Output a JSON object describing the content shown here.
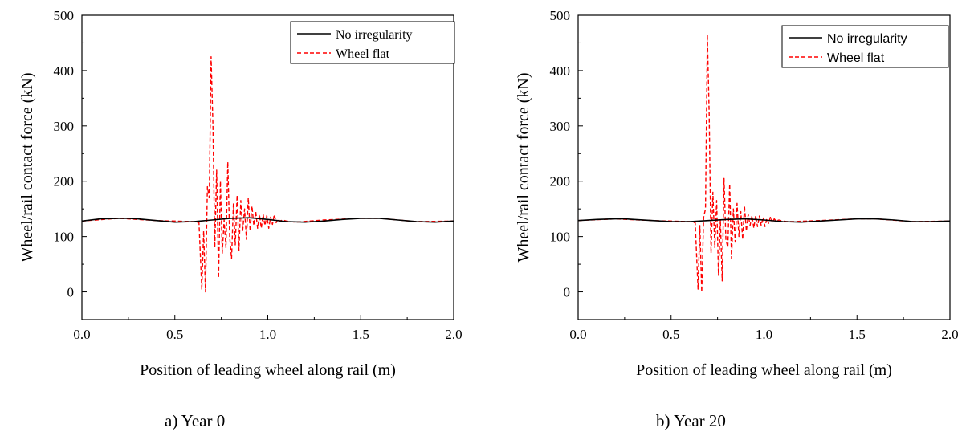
{
  "chart_data": [
    {
      "type": "line",
      "caption": "a) Year 0",
      "xlabel": "Position of leading wheel along rail (m)",
      "ylabel": "Wheel/rail contact force (kN)",
      "xlim": [
        0.0,
        2.0
      ],
      "ylim": [
        -50,
        500
      ],
      "xticks": [
        "0.0",
        "0.5",
        "1.0",
        "1.5",
        "2.0"
      ],
      "yticks": [
        "0",
        "100",
        "200",
        "300",
        "400",
        "500"
      ],
      "legend_position": "top-right",
      "series": [
        {
          "name": "No irregularity",
          "color": "#000000",
          "style": "solid",
          "x": [
            0.0,
            0.1,
            0.2,
            0.25,
            0.3,
            0.4,
            0.5,
            0.6,
            0.7,
            0.8,
            0.9,
            1.0,
            1.1,
            1.2,
            1.3,
            1.4,
            1.5,
            1.6,
            1.7,
            1.8,
            1.9,
            2.0
          ],
          "y": [
            128,
            132,
            133,
            133,
            132,
            129,
            126,
            127,
            130,
            133,
            134,
            131,
            127,
            126,
            128,
            131,
            133,
            133,
            130,
            127,
            126,
            128
          ]
        },
        {
          "name": "Wheel flat",
          "color": "#ff0000",
          "style": "dashed",
          "x": [
            0.0,
            0.2,
            0.4,
            0.6,
            0.63,
            0.645,
            0.655,
            0.665,
            0.675,
            0.685,
            0.695,
            0.705,
            0.715,
            0.725,
            0.735,
            0.745,
            0.755,
            0.765,
            0.775,
            0.785,
            0.795,
            0.805,
            0.815,
            0.825,
            0.835,
            0.845,
            0.855,
            0.865,
            0.875,
            0.885,
            0.895,
            0.905,
            0.915,
            0.925,
            0.935,
            0.945,
            0.955,
            0.965,
            0.975,
            0.985,
            0.995,
            1.005,
            1.015,
            1.025,
            1.035,
            1.045,
            1.055,
            1.065,
            1.08,
            1.1,
            1.12,
            1.15,
            1.3,
            1.5,
            1.6,
            1.8,
            2.0
          ],
          "y": [
            128,
            133,
            129,
            127,
            125,
            5,
            110,
            0,
            190,
            170,
            425,
            300,
            80,
            220,
            25,
            200,
            70,
            130,
            80,
            235,
            100,
            60,
            160,
            85,
            175,
            75,
            165,
            110,
            150,
            95,
            170,
            110,
            155,
            120,
            145,
            115,
            140,
            115,
            140,
            120,
            138,
            115,
            135,
            122,
            140,
            125,
            132,
            128,
            130,
            128,
            127,
            126,
            130,
            133,
            133,
            127,
            128
          ]
        }
      ]
    },
    {
      "type": "line",
      "caption": "b) Year 20",
      "xlabel": "Position of leading wheel along rail (m)",
      "ylabel": "Wheel/rail contact force (kN)",
      "xlim": [
        0.0,
        2.0
      ],
      "ylim": [
        -50,
        500
      ],
      "xticks": [
        "0.0",
        "0.5",
        "1.0",
        "1.5",
        "2.0"
      ],
      "yticks": [
        "0",
        "100",
        "200",
        "300",
        "400",
        "500"
      ],
      "legend_position": "top-right",
      "series": [
        {
          "name": "No irregularity",
          "color": "#000000",
          "style": "solid",
          "x": [
            0.0,
            0.1,
            0.2,
            0.25,
            0.3,
            0.4,
            0.5,
            0.6,
            0.7,
            0.8,
            0.9,
            1.0,
            1.1,
            1.2,
            1.3,
            1.4,
            1.5,
            1.6,
            1.7,
            1.8,
            1.9,
            2.0
          ],
          "y": [
            129,
            131,
            132,
            132,
            131,
            129,
            127,
            127,
            129,
            131,
            132,
            130,
            127,
            126,
            128,
            130,
            132,
            132,
            130,
            127,
            127,
            128
          ]
        },
        {
          "name": "Wheel flat",
          "color": "#ff0000",
          "style": "dashed",
          "x": [
            0.0,
            0.2,
            0.4,
            0.6,
            0.63,
            0.645,
            0.655,
            0.665,
            0.675,
            0.685,
            0.695,
            0.705,
            0.715,
            0.725,
            0.735,
            0.745,
            0.755,
            0.765,
            0.775,
            0.785,
            0.795,
            0.805,
            0.815,
            0.825,
            0.835,
            0.845,
            0.855,
            0.865,
            0.875,
            0.885,
            0.895,
            0.905,
            0.915,
            0.925,
            0.935,
            0.945,
            0.955,
            0.965,
            0.975,
            0.985,
            0.995,
            1.005,
            1.015,
            1.025,
            1.035,
            1.045,
            1.055,
            1.065,
            1.08,
            1.1,
            1.12,
            1.15,
            1.3,
            1.5,
            1.6,
            1.8,
            2.0
          ],
          "y": [
            129,
            132,
            129,
            127,
            125,
            5,
            120,
            0,
            135,
            150,
            465,
            320,
            70,
            180,
            80,
            165,
            30,
            130,
            20,
            205,
            95,
            80,
            195,
            60,
            150,
            90,
            160,
            100,
            145,
            95,
            155,
            110,
            140,
            120,
            138,
            115,
            138,
            118,
            137,
            120,
            135,
            118,
            133,
            124,
            136,
            125,
            132,
            128,
            130,
            128,
            127,
            127,
            129,
            132,
            132,
            127,
            128
          ]
        }
      ]
    }
  ]
}
